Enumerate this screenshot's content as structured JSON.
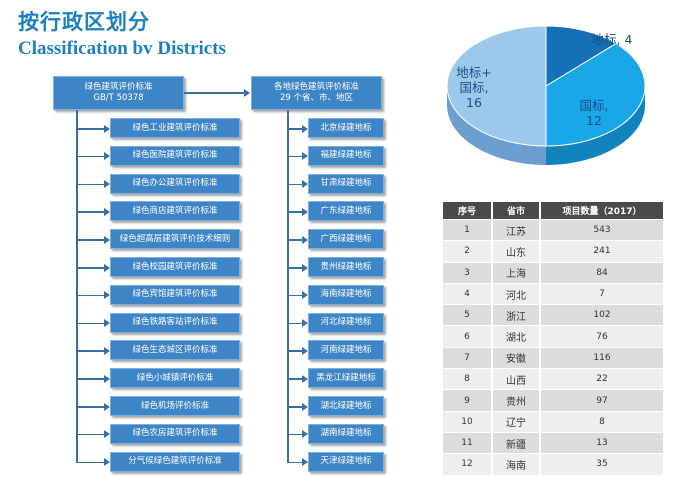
{
  "header": {
    "title_cn": "按行政区划分",
    "title_en": "Classification bv Districts"
  },
  "national": {
    "root_line1": "绿色建筑评价标准",
    "root_line2": "GB/T 50378",
    "items": [
      "绿色工业建筑评价标准",
      "绿色医院建筑评价标准",
      "绿色办公建筑评价标准",
      "绿色商店建筑评价标准",
      "绿色超高层建筑评价技术细则",
      "绿色校园建筑评价标准",
      "绿色宾馆建筑评价标准",
      "绿色铁路客站评价标准",
      "绿色生态城区评价标准",
      "绿色小城镇评价标准",
      "绿色机场评价标准",
      "绿色农房建筑评价标准",
      "分气候绿色建筑评价标准"
    ]
  },
  "local": {
    "root_line1": "各地绿色建筑评价标准",
    "root_line2": "29 个省、市、地区",
    "items": [
      "北京绿建地标",
      "福建绿建地标",
      "甘肃绿建地标",
      "广东绿建地标",
      "广西绿建地标",
      "贵州绿建地标",
      "海南绿建地标",
      "河北绿建地标",
      "河南绿建地标",
      "黑龙江绿建地标",
      "湖北绿建地标",
      "湖南绿建地标",
      "天津绿建地标"
    ]
  },
  "chart_data": {
    "type": "pie",
    "title": "",
    "categories": [
      "地标",
      "国标",
      "地标+国标"
    ],
    "values": [
      4,
      12,
      16
    ],
    "labels": [
      {
        "lines": [
          "地标, 4"
        ]
      },
      {
        "lines": [
          "国标,",
          "12"
        ]
      },
      {
        "lines": [
          "地标+",
          "国标,",
          "16"
        ]
      }
    ],
    "colors": [
      "#1670b5",
      "#1aa7e8",
      "#9cc8ec"
    ],
    "side_colors": [
      "#10538a",
      "#1283bd",
      "#6c9fcf"
    ],
    "label_color": "#1a4f87"
  },
  "table": {
    "headers": [
      "序号",
      "省市",
      "项目数量（2017）"
    ],
    "rows": [
      [
        "1",
        "江苏",
        "543"
      ],
      [
        "2",
        "山东",
        "241"
      ],
      [
        "3",
        "上海",
        "84"
      ],
      [
        "4",
        "河北",
        "7"
      ],
      [
        "5",
        "浙江",
        "102"
      ],
      [
        "6",
        "湖北",
        "76"
      ],
      [
        "7",
        "安徽",
        "116"
      ],
      [
        "8",
        "山西",
        "22"
      ],
      [
        "9",
        "贵州",
        "97"
      ],
      [
        "10",
        "辽宁",
        "8"
      ],
      [
        "11",
        "新疆",
        "13"
      ],
      [
        "12",
        "海南",
        "35"
      ]
    ]
  }
}
